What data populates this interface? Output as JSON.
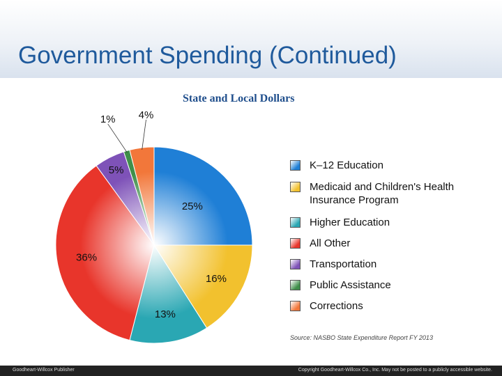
{
  "slide": {
    "title": "Government Spending (Continued)"
  },
  "chart_data": {
    "type": "pie",
    "title": "State and Local Dollars",
    "categories": [
      "K–12 Education",
      "Medicaid and Children's Health Insurance Program",
      "Higher Education",
      "All Other",
      "Transportation",
      "Public Assistance",
      "Corrections"
    ],
    "values": [
      25,
      16,
      13,
      36,
      5,
      1,
      4
    ],
    "labels": [
      "25%",
      "16%",
      "13%",
      "36%",
      "5%",
      "1%",
      "4%"
    ],
    "colors": [
      "#1f7fd6",
      "#f2c12e",
      "#2aa7b3",
      "#e8352b",
      "#7e52b8",
      "#3f8f4a",
      "#f2773a"
    ],
    "legend_position": "right",
    "source": "Source: NASBO State Expenditure Report FY 2013"
  },
  "legend": [
    {
      "label": "K–12 Education",
      "color": "#1f7fd6"
    },
    {
      "label": "Medicaid and Children's Health Insurance Program",
      "color": "#f2c12e"
    },
    {
      "label": "Higher Education",
      "color": "#2aa7b3"
    },
    {
      "label": "All Other",
      "color": "#e8352b"
    },
    {
      "label": "Transportation",
      "color": "#7e52b8"
    },
    {
      "label": "Public Assistance",
      "color": "#3f8f4a"
    },
    {
      "label": "Corrections",
      "color": "#f2773a"
    }
  ],
  "footer": {
    "publisher": "Goodheart-Willcox Publisher",
    "copyright": "Copyright Goodheart-Willcox Co., Inc.  May not be posted to a publicly accessible website."
  }
}
